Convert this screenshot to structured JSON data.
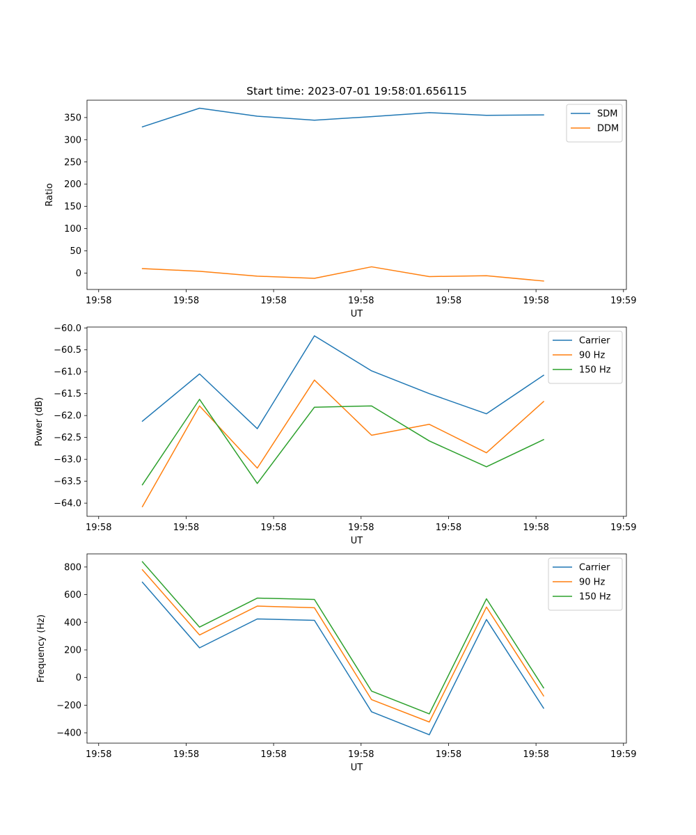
{
  "chart_data": [
    {
      "type": "line",
      "title": "Start time: 2023-07-01 19:58:01.656115",
      "xlabel": "UT",
      "ylabel": "Ratio",
      "xlim": [
        -0.2,
        9.05
      ],
      "ylim": [
        -37,
        389
      ],
      "x_ticks": [
        {
          "value": 0,
          "label": "19:58"
        },
        {
          "value": 1.5,
          "label": "19:58"
        },
        {
          "value": 3,
          "label": "19:58"
        },
        {
          "value": 4.5,
          "label": "19:58"
        },
        {
          "value": 6,
          "label": "19:58"
        },
        {
          "value": 7.5,
          "label": "19:58"
        },
        {
          "value": 9,
          "label": "19:59"
        }
      ],
      "y_ticks": [
        {
          "value": 0,
          "label": "0"
        },
        {
          "value": 50,
          "label": "50"
        },
        {
          "value": 100,
          "label": "100"
        },
        {
          "value": 150,
          "label": "150"
        },
        {
          "value": 200,
          "label": "200"
        },
        {
          "value": 250,
          "label": "250"
        },
        {
          "value": 300,
          "label": "300"
        },
        {
          "value": 350,
          "label": "350"
        }
      ],
      "legend_position": "top-right",
      "x": [
        0.75,
        1.73,
        2.72,
        3.7,
        4.68,
        5.67,
        6.65,
        7.63
      ],
      "series": [
        {
          "name": "SDM",
          "color": "#1f77b4",
          "values": [
            329,
            371,
            353,
            344,
            352,
            361,
            355,
            356
          ]
        },
        {
          "name": "DDM",
          "color": "#ff7f0e",
          "values": [
            10,
            4,
            -7,
            -12,
            14,
            -8,
            -6,
            -18
          ]
        }
      ]
    },
    {
      "type": "line",
      "title": "",
      "xlabel": "UT",
      "ylabel": "Power (dB)",
      "xlim": [
        -0.2,
        9.05
      ],
      "ylim": [
        -64.3,
        -59.98
      ],
      "x_ticks": [
        {
          "value": 0,
          "label": "19:58"
        },
        {
          "value": 1.5,
          "label": "19:58"
        },
        {
          "value": 3,
          "label": "19:58"
        },
        {
          "value": 4.5,
          "label": "19:58"
        },
        {
          "value": 6,
          "label": "19:58"
        },
        {
          "value": 7.5,
          "label": "19:58"
        },
        {
          "value": 9,
          "label": "19:59"
        }
      ],
      "y_ticks": [
        {
          "value": -64.0,
          "label": "−64.0"
        },
        {
          "value": -63.5,
          "label": "−63.5"
        },
        {
          "value": -63.0,
          "label": "−63.0"
        },
        {
          "value": -62.5,
          "label": "−62.5"
        },
        {
          "value": -62.0,
          "label": "−62.0"
        },
        {
          "value": -61.5,
          "label": "−61.5"
        },
        {
          "value": -61.0,
          "label": "−61.0"
        },
        {
          "value": -60.5,
          "label": "−60.5"
        },
        {
          "value": -60.0,
          "label": "−60.0"
        }
      ],
      "legend_position": "top-right",
      "x": [
        0.75,
        1.73,
        2.72,
        3.7,
        4.68,
        5.67,
        6.65,
        7.63
      ],
      "series": [
        {
          "name": "Carrier",
          "color": "#1f77b4",
          "values": [
            -62.13,
            -61.05,
            -62.3,
            -60.18,
            -60.98,
            -61.5,
            -61.96,
            -61.08
          ]
        },
        {
          "name": "90 Hz",
          "color": "#ff7f0e",
          "values": [
            -64.08,
            -61.78,
            -63.2,
            -61.19,
            -62.45,
            -62.2,
            -62.85,
            -61.68
          ]
        },
        {
          "name": "150 Hz",
          "color": "#2ca02c",
          "values": [
            -63.58,
            -61.63,
            -63.55,
            -61.81,
            -61.78,
            -62.58,
            -63.17,
            -62.55
          ]
        }
      ]
    },
    {
      "type": "line",
      "title": "",
      "xlabel": "UT",
      "ylabel": "Frequency (Hz)",
      "xlim": [
        -0.2,
        9.05
      ],
      "ylim": [
        -475,
        895
      ],
      "x_ticks": [
        {
          "value": 0,
          "label": "19:58"
        },
        {
          "value": 1.5,
          "label": "19:58"
        },
        {
          "value": 3,
          "label": "19:58"
        },
        {
          "value": 4.5,
          "label": "19:58"
        },
        {
          "value": 6,
          "label": "19:58"
        },
        {
          "value": 7.5,
          "label": "19:58"
        },
        {
          "value": 9,
          "label": "19:59"
        }
      ],
      "y_ticks": [
        {
          "value": -400,
          "label": "−400"
        },
        {
          "value": -200,
          "label": "−200"
        },
        {
          "value": 0,
          "label": "0"
        },
        {
          "value": 200,
          "label": "200"
        },
        {
          "value": 400,
          "label": "400"
        },
        {
          "value": 600,
          "label": "600"
        },
        {
          "value": 800,
          "label": "800"
        }
      ],
      "legend_position": "top-right",
      "x": [
        0.75,
        1.73,
        2.72,
        3.7,
        4.68,
        5.67,
        6.65,
        7.63
      ],
      "series": [
        {
          "name": "Carrier",
          "color": "#1f77b4",
          "values": [
            690,
            215,
            424,
            414,
            -248,
            -414,
            420,
            -222
          ]
        },
        {
          "name": "90 Hz",
          "color": "#ff7f0e",
          "values": [
            780,
            308,
            517,
            505,
            -160,
            -322,
            510,
            -133
          ]
        },
        {
          "name": "150 Hz",
          "color": "#2ca02c",
          "values": [
            838,
            365,
            575,
            565,
            -98,
            -263,
            570,
            -75
          ]
        }
      ]
    }
  ]
}
